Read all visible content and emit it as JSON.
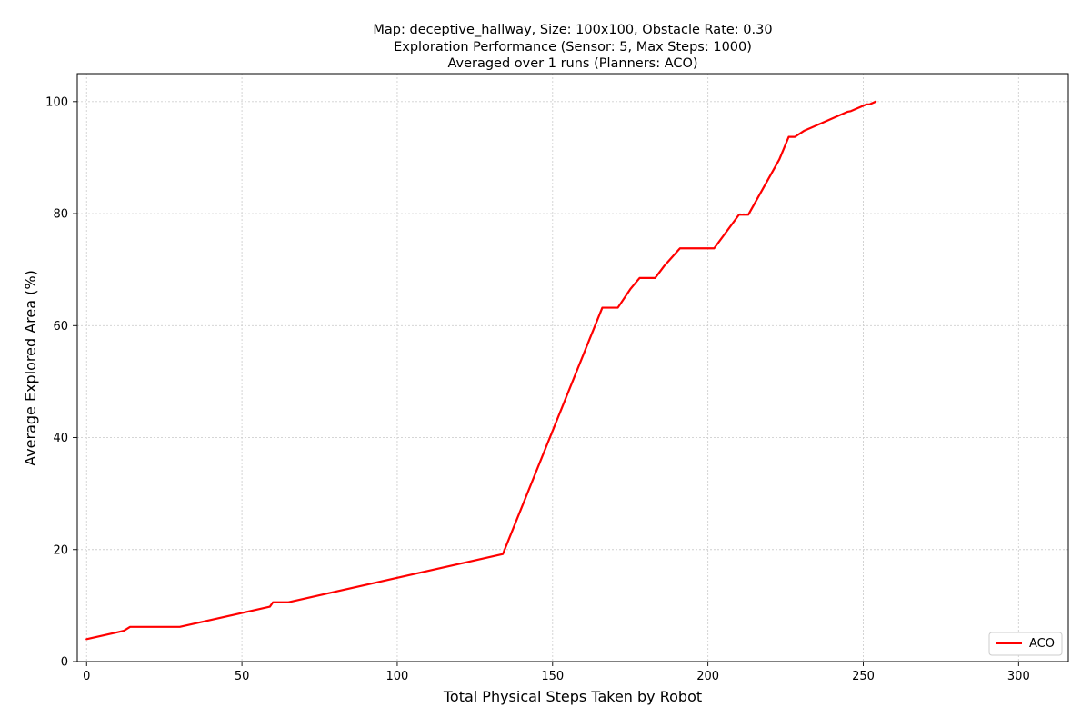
{
  "chart_data": {
    "type": "line",
    "title_lines": [
      "Map: deceptive_hallway, Size: 100x100, Obstacle Rate: 0.30",
      "Exploration Performance (Sensor: 5, Max Steps: 1000)",
      "Averaged over 1 runs (Planners: ACO)"
    ],
    "xlabel": "Total Physical Steps Taken by Robot",
    "ylabel": "Average Explored Area (%)",
    "xlim": [
      -3,
      316
    ],
    "ylim": [
      0,
      105
    ],
    "xticks": [
      0,
      50,
      100,
      150,
      200,
      250,
      300
    ],
    "yticks": [
      0,
      20,
      40,
      60,
      80,
      100
    ],
    "grid": true,
    "legend_position": "lower-right",
    "series": [
      {
        "name": "ACO",
        "color": "#ff0000",
        "x": [
          0,
          12,
          14,
          30,
          59,
          60,
          65,
          134,
          166,
          171,
          175,
          178,
          183,
          186,
          191,
          202,
          210,
          213,
          223,
          226,
          228,
          231,
          245,
          246,
          251,
          252,
          254
        ],
        "y": [
          4.0,
          5.5,
          6.2,
          6.2,
          9.8,
          10.6,
          10.6,
          19.2,
          63.2,
          63.2,
          66.5,
          68.5,
          68.5,
          70.7,
          73.8,
          73.8,
          79.8,
          79.8,
          89.7,
          93.7,
          93.7,
          94.8,
          98.2,
          98.3,
          99.5,
          99.5,
          100.0
        ]
      }
    ]
  }
}
